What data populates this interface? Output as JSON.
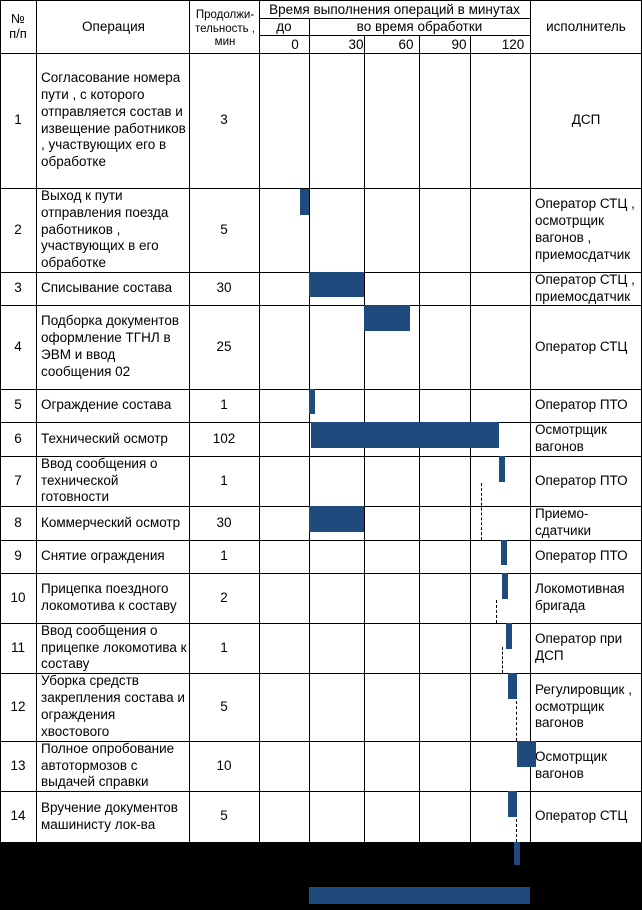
{
  "header": {
    "num": "№\nп/п",
    "operation": "Операция",
    "duration": "Продолжи-\nтельность ,\nмин",
    "time_title": "Время выполнения операций в минутах",
    "before": "до",
    "during": "во время обработки",
    "executor": "исполнитель",
    "ticks": [
      "0",
      "30",
      "60",
      "90",
      "120"
    ]
  },
  "rows": [
    {
      "num": "1",
      "operation": "Согласование номера пути , с которого отправляется состав и извещение работников , участвующих его в обработке",
      "duration": "3",
      "executor": "ДСП"
    },
    {
      "num": "2",
      "operation": "Выход к пути отправления поезда работников , участвующих в его обработке",
      "duration": "5",
      "executor": "Оператор СТЦ , осмотрщик вагонов , приемосдатчик"
    },
    {
      "num": "3",
      "operation": "Списывание состава",
      "duration": "30",
      "executor": "Оператор СТЦ , приемосдатчик"
    },
    {
      "num": "4",
      "operation": "Подборка документов оформление ТГНЛ в ЭВМ и ввод сообщения 02",
      "duration": "25",
      "executor": "Оператор СТЦ"
    },
    {
      "num": "5",
      "operation": "Ограждение состава",
      "duration": "1",
      "executor": "Оператор ПТО"
    },
    {
      "num": "6",
      "operation": "Технический осмотр",
      "duration": "102",
      "executor": "Осмотрщик вагонов"
    },
    {
      "num": "7",
      "operation": "Ввод сообщения о технической готовности",
      "duration": "1",
      "executor": "Оператор ПТО"
    },
    {
      "num": "8",
      "operation": "Коммерческий осмотр",
      "duration": "30",
      "executor": "Приемо- сдатчики"
    },
    {
      "num": "9",
      "operation": "Снятие ограждения",
      "duration": "1",
      "executor": "Оператор ПТО"
    },
    {
      "num": "10",
      "operation": "Прицепка поездного локомотива к составу",
      "duration": "2",
      "executor": "Локомотивная бригада"
    },
    {
      "num": "11",
      "operation": "Ввод сообщения о прицепке локомотива к составу",
      "duration": "1",
      "executor": "Оператор при ДСП"
    },
    {
      "num": "12",
      "operation": "Уборка средств закрепления состава и ограждения хвостового",
      "duration": "5",
      "executor": "Регулировщик , осмотрщик вагонов"
    },
    {
      "num": "13",
      "operation": "Полное опробование автотормозов с выдачей справки",
      "duration": "10",
      "executor": "Осмотрщик вагонов"
    },
    {
      "num": "14",
      "operation": "Вручение документов машинисту лок-ва",
      "duration": "5",
      "executor": "Оператор СТЦ"
    }
  ],
  "bars_minutes": [
    {
      "row": 2,
      "start": -5,
      "end": 0
    },
    {
      "row": 3,
      "start": 0,
      "end": 30
    },
    {
      "row": 4,
      "start": 30,
      "end": 55
    },
    {
      "row": 5,
      "start": 0,
      "end": 1
    },
    {
      "row": 6,
      "start": 1,
      "end": 103
    },
    {
      "row": 7,
      "start": 103,
      "end": 104
    },
    {
      "row": 8,
      "start": 0,
      "end": 30
    },
    {
      "row": 9,
      "start": 104,
      "end": 105
    },
    {
      "row": 10,
      "start": 105,
      "end": 107
    },
    {
      "row": 11,
      "start": 107,
      "end": 108
    },
    {
      "row": 12,
      "start": 108,
      "end": 113
    },
    {
      "row": 13,
      "start": 113,
      "end": 123
    },
    {
      "row": 14,
      "start": 108,
      "end": 113
    }
  ],
  "colors": {
    "bar": "#1f4a7e",
    "background": "#000000",
    "sheet": "#ffffff"
  }
}
